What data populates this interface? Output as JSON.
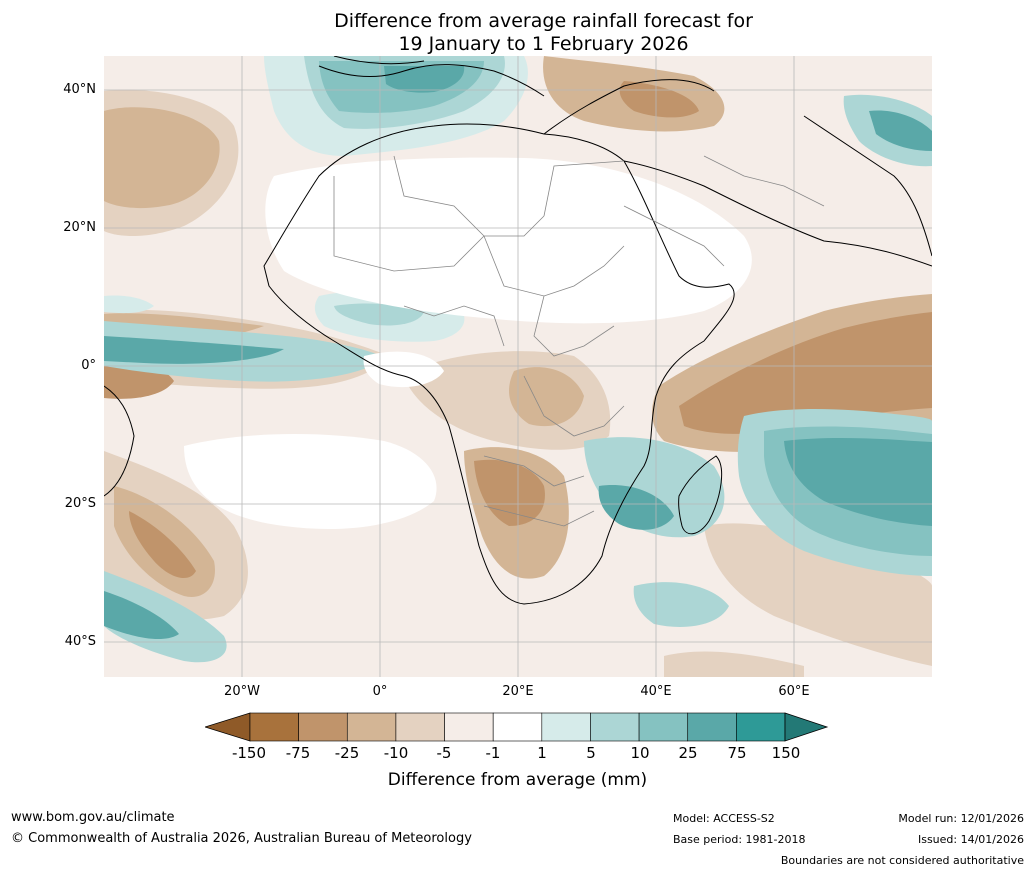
{
  "title": {
    "line1": "Difference from average rainfall forecast for",
    "line2": "19 January to 1 February 2026"
  },
  "map": {
    "lat_labels": [
      "40°N",
      "20°N",
      "0°",
      "20°S",
      "40°S"
    ],
    "lon_labels": [
      "20°W",
      "0°",
      "20°E",
      "40°E",
      "60°E"
    ]
  },
  "legend": {
    "tick_labels": [
      "-150",
      "-75",
      "-25",
      "-10",
      "-5",
      "-1",
      "1",
      "5",
      "10",
      "25",
      "75",
      "150"
    ],
    "colors": {
      "extend_low": "#8f5a28",
      "bins": [
        "#a8723c",
        "#c0946b",
        "#d3b595",
        "#e4d2c1",
        "#f5ede8",
        "#ffffff",
        "#d6ebea",
        "#acd6d5",
        "#85c2c1",
        "#5aa8a8",
        "#2e9a97"
      ],
      "extend_high": "#237976"
    },
    "title": "Difference from average (mm)"
  },
  "footer": {
    "url": "www.bom.gov.au/climate",
    "copyright": "© Commonwealth of Australia 2026, Australian Bureau of Meteorology",
    "model": "Model: ACCESS-S2",
    "base_period": "Base period: 1981-2018",
    "model_run": "Model run: 12/01/2026",
    "issued": "Issued: 14/01/2026",
    "disclaimer": "Boundaries are not considered authoritative"
  }
}
